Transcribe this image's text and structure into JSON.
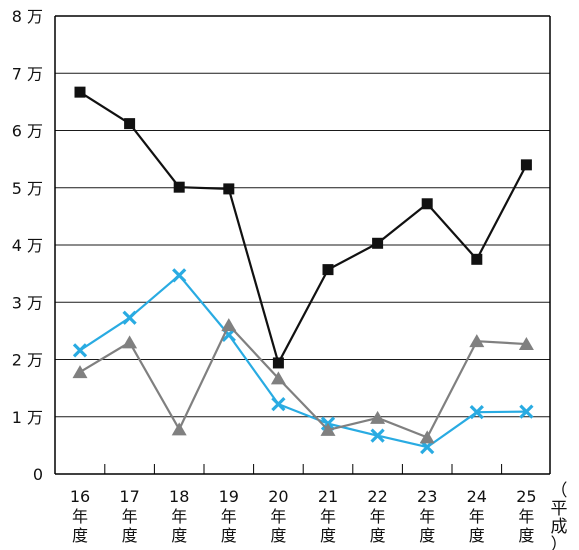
{
  "chart_data": {
    "type": "line",
    "title": "",
    "xlabel": "",
    "ylabel": "",
    "x_unit_label": [
      "（",
      "平",
      "成",
      "）"
    ],
    "ylim": [
      0,
      80000
    ],
    "grid": true,
    "y_ticks": [
      {
        "value": 0,
        "label": "0"
      },
      {
        "value": 10000,
        "label": "1 万"
      },
      {
        "value": 20000,
        "label": "2 万"
      },
      {
        "value": 30000,
        "label": "3 万"
      },
      {
        "value": 40000,
        "label": "4 万"
      },
      {
        "value": 50000,
        "label": "5 万"
      },
      {
        "value": 60000,
        "label": "6 万"
      },
      {
        "value": 70000,
        "label": "7 万"
      },
      {
        "value": 80000,
        "label": "8 万"
      }
    ],
    "categories": [
      {
        "year": "16",
        "suffix": [
          "年",
          "度"
        ]
      },
      {
        "year": "17",
        "suffix": [
          "年",
          "度"
        ]
      },
      {
        "year": "18",
        "suffix": [
          "年",
          "度"
        ]
      },
      {
        "year": "19",
        "suffix": [
          "年",
          "度"
        ]
      },
      {
        "year": "20",
        "suffix": [
          "年",
          "度"
        ]
      },
      {
        "year": "21",
        "suffix": [
          "年",
          "度"
        ]
      },
      {
        "year": "22",
        "suffix": [
          "年",
          "度"
        ]
      },
      {
        "year": "23",
        "suffix": [
          "年",
          "度"
        ]
      },
      {
        "year": "24",
        "suffix": [
          "年",
          "度"
        ]
      },
      {
        "year": "25",
        "suffix": [
          "年",
          "度"
        ]
      }
    ],
    "series": [
      {
        "marker": "square",
        "color": "#111111",
        "values": [
          66700,
          61200,
          50100,
          49800,
          19400,
          35700,
          40300,
          47200,
          37500,
          54000
        ]
      },
      {
        "marker": "cross",
        "color": "#29abe2",
        "values": [
          21600,
          27300,
          34700,
          24300,
          12200,
          8800,
          6700,
          4700,
          10800,
          10900
        ]
      },
      {
        "marker": "triangle",
        "color": "#808080",
        "values": [
          17800,
          23000,
          7800,
          26000,
          16700,
          7700,
          9800,
          6400,
          23200,
          22700
        ]
      }
    ]
  }
}
